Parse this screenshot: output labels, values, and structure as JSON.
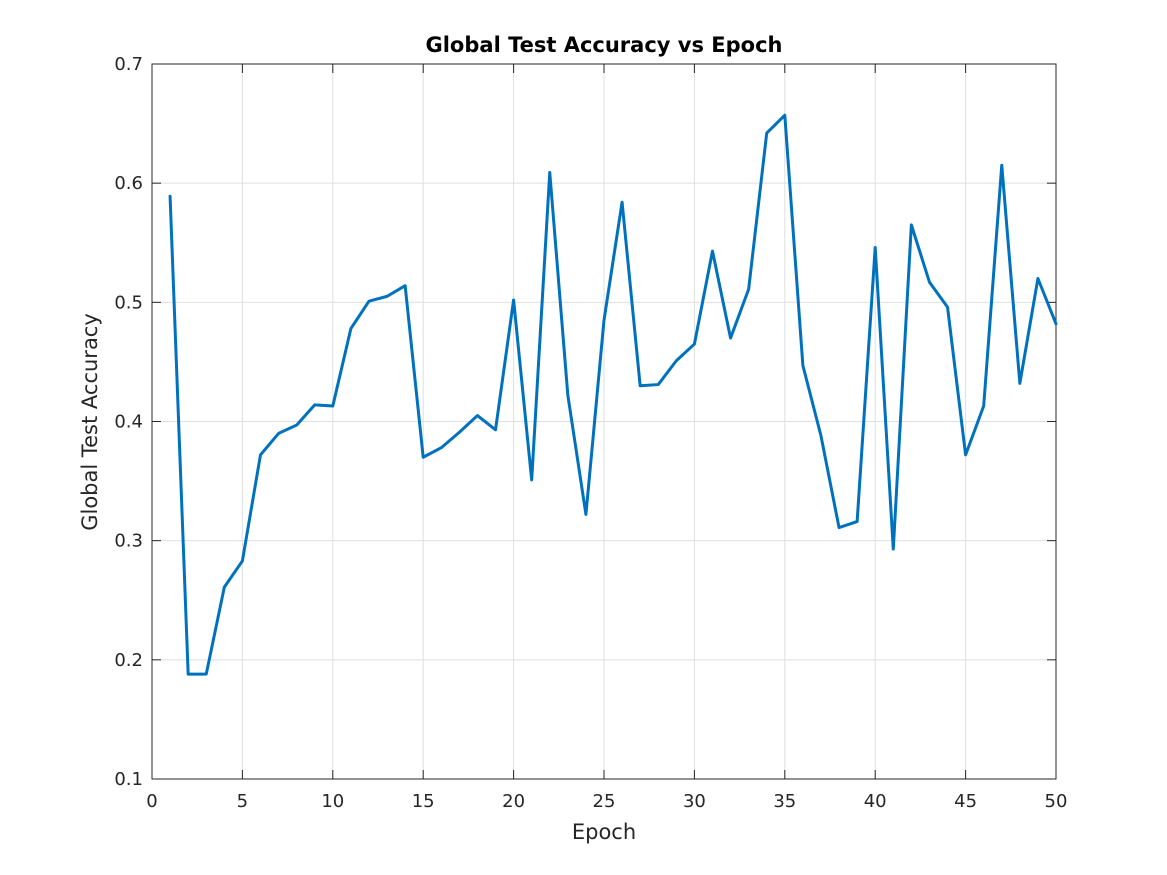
{
  "chart_data": {
    "type": "line",
    "title": "Global Test Accuracy vs Epoch",
    "xlabel": "Epoch",
    "ylabel": "Global Test Accuracy",
    "xlim": [
      0,
      50
    ],
    "ylim": [
      0.1,
      0.7
    ],
    "xticks": [
      0,
      5,
      10,
      15,
      20,
      25,
      30,
      35,
      40,
      45,
      50
    ],
    "yticks": [
      0.1,
      0.2,
      0.3,
      0.4,
      0.5,
      0.6,
      0.7
    ],
    "xtick_labels": [
      "0",
      "5",
      "10",
      "15",
      "20",
      "25",
      "30",
      "35",
      "40",
      "45",
      "50"
    ],
    "ytick_labels": [
      "0.1",
      "0.2",
      "0.3",
      "0.4",
      "0.5",
      "0.6",
      "0.7"
    ],
    "grid": true,
    "series": [
      {
        "name": "Global Test Accuracy",
        "color": "#0072bd",
        "x": [
          1,
          2,
          3,
          4,
          5,
          6,
          7,
          8,
          9,
          10,
          11,
          12,
          13,
          14,
          15,
          16,
          17,
          18,
          19,
          20,
          21,
          22,
          23,
          24,
          25,
          26,
          27,
          28,
          29,
          30,
          31,
          32,
          33,
          34,
          35,
          36,
          37,
          38,
          39,
          40,
          41,
          42,
          43,
          44,
          45,
          46,
          47,
          48,
          49,
          50
        ],
        "y": [
          0.589,
          0.188,
          0.188,
          0.261,
          0.283,
          0.372,
          0.39,
          0.397,
          0.414,
          0.413,
          0.478,
          0.501,
          0.505,
          0.514,
          0.37,
          0.378,
          0.391,
          0.405,
          0.393,
          0.502,
          0.351,
          0.609,
          0.422,
          0.322,
          0.485,
          0.584,
          0.43,
          0.431,
          0.451,
          0.465,
          0.543,
          0.47,
          0.511,
          0.642,
          0.657,
          0.447,
          0.388,
          0.311,
          0.316,
          0.546,
          0.293,
          0.565,
          0.517,
          0.496,
          0.372,
          0.413,
          0.615,
          0.432,
          0.52,
          0.482
        ]
      }
    ]
  }
}
